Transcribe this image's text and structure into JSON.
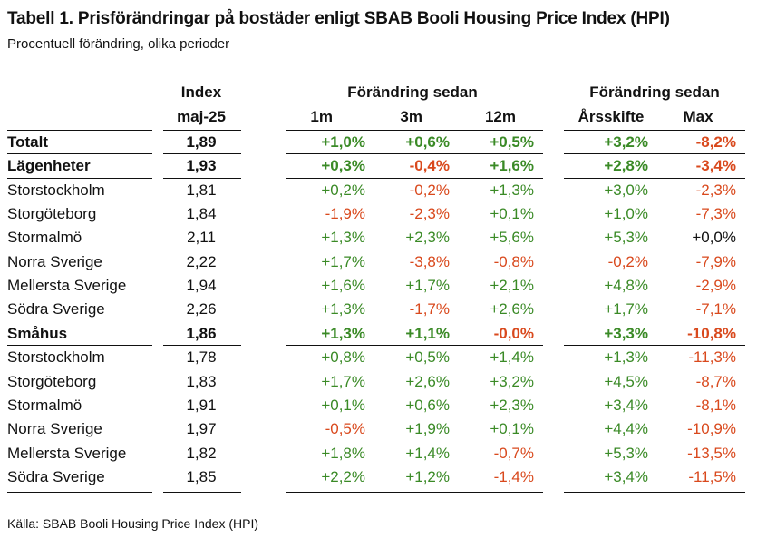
{
  "title": "Tabell 1. Prisförändringar på bostäder enligt SBAB Booli Housing Price Index (HPI)",
  "subtitle": "Procentuell förändring, olika perioder",
  "source": "Källa: SBAB Booli Housing Price Index (HPI)",
  "header": {
    "index_top": "Index",
    "index_bottom": "maj-25",
    "group1": "Förändring sedan",
    "group2": "Förändring sedan",
    "col_1m": "1m",
    "col_3m": "3m",
    "col_12m": "12m",
    "col_ars": "Årsskifte",
    "col_max": "Max"
  },
  "colors": {
    "positive": "#3a8a26",
    "negative": "#d9491d",
    "text": "#111111"
  },
  "rows": [
    {
      "name": "Totalt",
      "index": "1,89",
      "m1": "+1,0%",
      "m3": "+0,6%",
      "m12": "+0,5%",
      "ars": "+3,2%",
      "max": "-8,2%",
      "bold": true
    },
    {
      "name": "Lägenheter",
      "index": "1,93",
      "m1": "+0,3%",
      "m3": "-0,4%",
      "m12": "+1,6%",
      "ars": "+2,8%",
      "max": "-3,4%",
      "bold": true
    },
    {
      "name": "Storstockholm",
      "index": "1,81",
      "m1": "+0,2%",
      "m3": "-0,2%",
      "m12": "+1,3%",
      "ars": "+3,0%",
      "max": "-2,3%",
      "bold": false
    },
    {
      "name": "Storgöteborg",
      "index": "1,84",
      "m1": "-1,9%",
      "m3": "-2,3%",
      "m12": "+0,1%",
      "ars": "+1,0%",
      "max": "-7,3%",
      "bold": false
    },
    {
      "name": "Stormalmö",
      "index": "2,11",
      "m1": "+1,3%",
      "m3": "+2,3%",
      "m12": "+5,6%",
      "ars": "+5,3%",
      "max": "+0,0%",
      "bold": false
    },
    {
      "name": "Norra Sverige",
      "index": "2,22",
      "m1": "+1,7%",
      "m3": "-3,8%",
      "m12": "-0,8%",
      "ars": "-0,2%",
      "max": "-7,9%",
      "bold": false
    },
    {
      "name": "Mellersta Sverige",
      "index": "1,94",
      "m1": "+1,6%",
      "m3": "+1,7%",
      "m12": "+2,1%",
      "ars": "+4,8%",
      "max": "-2,9%",
      "bold": false
    },
    {
      "name": "Södra Sverige",
      "index": "2,26",
      "m1": "+1,3%",
      "m3": "-1,7%",
      "m12": "+2,6%",
      "ars": "+1,7%",
      "max": "-7,1%",
      "bold": false
    },
    {
      "name": "Småhus",
      "index": "1,86",
      "m1": "+1,3%",
      "m3": "+1,1%",
      "m12": "-0,0%",
      "ars": "+3,3%",
      "max": "-10,8%",
      "bold": true
    },
    {
      "name": "Storstockholm",
      "index": "1,78",
      "m1": "+0,8%",
      "m3": "+0,5%",
      "m12": "+1,4%",
      "ars": "+1,3%",
      "max": "-11,3%",
      "bold": false
    },
    {
      "name": "Storgöteborg",
      "index": "1,83",
      "m1": "+1,7%",
      "m3": "+2,6%",
      "m12": "+3,2%",
      "ars": "+4,5%",
      "max": "-8,7%",
      "bold": false
    },
    {
      "name": "Stormalmö",
      "index": "1,91",
      "m1": "+0,1%",
      "m3": "+0,6%",
      "m12": "+2,3%",
      "ars": "+3,4%",
      "max": "-8,1%",
      "bold": false
    },
    {
      "name": "Norra Sverige",
      "index": "1,97",
      "m1": "-0,5%",
      "m3": "+1,9%",
      "m12": "+0,1%",
      "ars": "+4,4%",
      "max": "-10,9%",
      "bold": false
    },
    {
      "name": "Mellersta Sverige",
      "index": "1,82",
      "m1": "+1,8%",
      "m3": "+1,4%",
      "m12": "-0,7%",
      "ars": "+5,3%",
      "max": "-13,5%",
      "bold": false
    },
    {
      "name": "Södra Sverige",
      "index": "1,85",
      "m1": "+2,2%",
      "m3": "+1,2%",
      "m12": "-1,4%",
      "ars": "+3,4%",
      "max": "-11,5%",
      "bold": false
    }
  ]
}
